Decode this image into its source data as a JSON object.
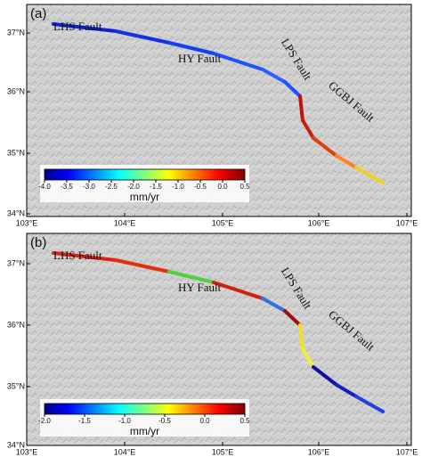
{
  "panels": [
    {
      "label": "(a)",
      "x_ticks": [
        "103°E",
        "104°E",
        "105°E",
        "106°E",
        "107°E"
      ],
      "y_ticks": [
        "37°N",
        "36°N",
        "35°N",
        "34°N"
      ],
      "faults": [
        "LHS Fault",
        "HY Fault",
        "LPS Fault",
        "GGBJ Fault"
      ],
      "colorbar_ticks": [
        "-4.0",
        "-3.5",
        "-3.0",
        "-2.5",
        "-2.0",
        "-1.5",
        "-1.0",
        "-0.5",
        "0.0",
        "0.5"
      ],
      "unit": "mm/yr"
    },
    {
      "label": "(b)",
      "x_ticks": [
        "103°E",
        "104°E",
        "105°E",
        "106°E",
        "107°E"
      ],
      "y_ticks": [
        "37°N",
        "36°N",
        "35°N",
        "34°N"
      ],
      "faults": [
        "LHS Fault",
        "HY Fault",
        "LPS Fault",
        "GGBJ Fault"
      ],
      "colorbar_ticks": [
        "-2.0",
        "-1.5",
        "-1.0",
        "-0.5",
        "0.0",
        "0.5"
      ],
      "unit": "mm/yr"
    }
  ]
}
